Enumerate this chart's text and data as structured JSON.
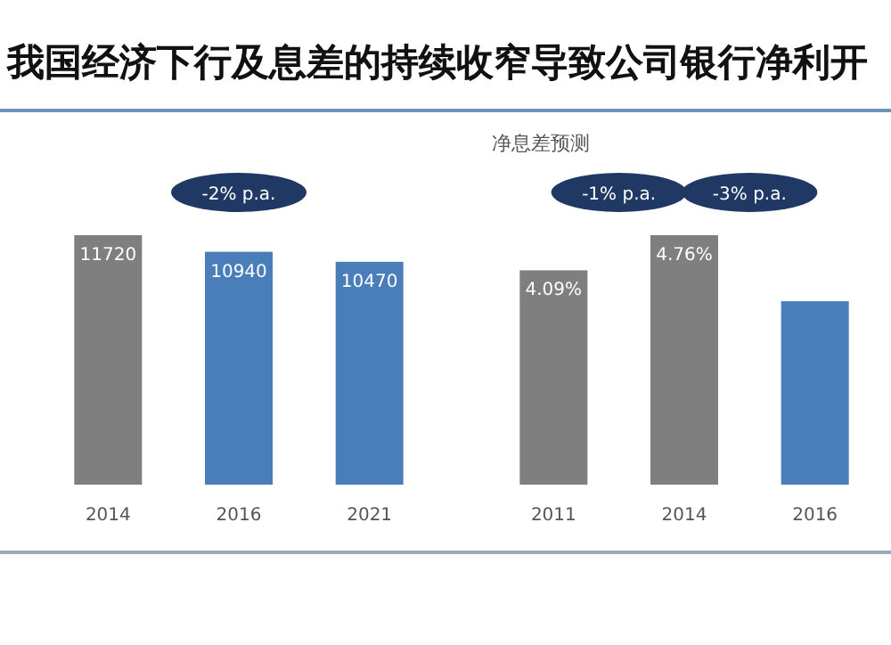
{
  "chart_data": [
    {
      "type": "bar",
      "title": "我国经济下行及息差的持续收窄导致公司银行净利开",
      "categories": [
        "2014",
        "2016",
        "2021"
      ],
      "values": [
        11720,
        10940,
        10470
      ],
      "colors": [
        "#7f7f7f",
        "#4a7ebb",
        "#4a7ebb"
      ],
      "data_labels": true,
      "annotations": [
        "-2% p.a."
      ]
    },
    {
      "type": "bar",
      "title": "净息差预测",
      "categories": [
        "2011",
        "2014",
        "2016"
      ],
      "values": [
        4.09,
        4.76,
        3.5
      ],
      "value_labels": [
        "4.09%",
        "4.76%",
        null
      ],
      "colors": [
        "#7f7f7f",
        "#7f7f7f",
        "#4a7ebb"
      ],
      "annotations": [
        "-1% p.a.",
        "-3% p.a."
      ]
    }
  ]
}
